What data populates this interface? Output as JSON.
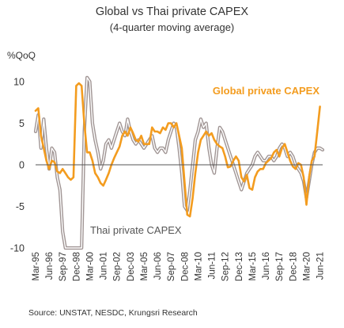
{
  "header": {
    "title": "Global vs Thai private CAPEX",
    "subtitle": "(4-quarter moving average)",
    "y_unit": "%QoQ"
  },
  "footer": {
    "source": "Source:  UNSTAT, NESDC, Krungsri Research"
  },
  "colors": {
    "global": "#f39c1f",
    "thai_outer": "#a09594",
    "thai_inner": "#ffffff",
    "zero_line": "#555555"
  },
  "chart_data": {
    "type": "line",
    "title": "Global vs Thai private CAPEX",
    "subtitle": "(4-quarter moving average)",
    "ylabel": "%QoQ",
    "ylim": [
      -10,
      10
    ],
    "yticks": [
      10,
      5,
      0,
      -5,
      -10
    ],
    "xlim": [
      1995.125,
      2021.625
    ],
    "x_tick_labels": [
      "Mar-95",
      "Jun-96",
      "Sep-97",
      "Dec-98",
      "Mar-00",
      "Jun-01",
      "Sep-02",
      "Dec-03",
      "Mar-05",
      "Jun-06",
      "Sep-07",
      "Dec-08",
      "Mar-10",
      "Jun-11",
      "Sep-12",
      "Dec-13",
      "Mar-15",
      "Jun-16",
      "Sep-17",
      "Dec-18",
      "Mar-20",
      "Jun-21"
    ],
    "x_ticks": [
      1995.125,
      1996.375,
      1997.625,
      1998.875,
      2000.125,
      2001.375,
      2002.625,
      2003.875,
      2005.125,
      2006.375,
      2007.625,
      2008.875,
      2010.125,
      2011.375,
      2012.625,
      2013.875,
      2015.125,
      2016.375,
      2017.625,
      2018.875,
      2020.125,
      2021.375
    ],
    "grid": false,
    "series": [
      {
        "name": "Global private CAPEX",
        "label_position": "top-right",
        "points": [
          [
            1995.125,
            6.5
          ],
          [
            1995.375,
            6.8
          ],
          [
            1995.625,
            3.5
          ],
          [
            1995.875,
            2.0
          ],
          [
            1996.125,
            0.5
          ],
          [
            1996.375,
            -0.5
          ],
          [
            1996.625,
            0.5
          ],
          [
            1996.875,
            0.3
          ],
          [
            1997.125,
            -0.8
          ],
          [
            1997.375,
            -1.0
          ],
          [
            1997.625,
            -0.5
          ],
          [
            1997.875,
            -1.0
          ],
          [
            1998.125,
            -1.5
          ],
          [
            1998.375,
            -1.8
          ],
          [
            1998.625,
            -1.5
          ],
          [
            1998.875,
            9.5
          ],
          [
            1999.125,
            9.8
          ],
          [
            1999.375,
            9.5
          ],
          [
            1999.625,
            5.0
          ],
          [
            1999.875,
            1.5
          ],
          [
            2000.125,
            1.5
          ],
          [
            2000.375,
            0.5
          ],
          [
            2000.625,
            -1.0
          ],
          [
            2000.875,
            -1.5
          ],
          [
            2001.125,
            -2.2
          ],
          [
            2001.375,
            -2.5
          ],
          [
            2001.625,
            -1.8
          ],
          [
            2001.875,
            -1.0
          ],
          [
            2002.125,
            0.0
          ],
          [
            2002.375,
            0.8
          ],
          [
            2002.625,
            1.5
          ],
          [
            2002.875,
            2.2
          ],
          [
            2003.125,
            3.5
          ],
          [
            2003.375,
            4.0
          ],
          [
            2003.625,
            3.5
          ],
          [
            2003.875,
            4.5
          ],
          [
            2004.125,
            3.8
          ],
          [
            2004.375,
            3.0
          ],
          [
            2004.625,
            2.8
          ],
          [
            2004.875,
            3.5
          ],
          [
            2005.125,
            2.5
          ],
          [
            2005.375,
            2.5
          ],
          [
            2005.625,
            2.5
          ],
          [
            2005.875,
            4.5
          ],
          [
            2006.125,
            4.0
          ],
          [
            2006.375,
            4.0
          ],
          [
            2006.625,
            3.8
          ],
          [
            2006.875,
            4.5
          ],
          [
            2007.125,
            4.2
          ],
          [
            2007.375,
            5.0
          ],
          [
            2007.625,
            5.0
          ],
          [
            2007.875,
            4.5
          ],
          [
            2008.125,
            5.0
          ],
          [
            2008.375,
            3.5
          ],
          [
            2008.625,
            2.0
          ],
          [
            2008.875,
            -2.0
          ],
          [
            2009.125,
            -6.0
          ],
          [
            2009.375,
            -6.2
          ],
          [
            2009.625,
            -4.0
          ],
          [
            2009.875,
            -1.0
          ],
          [
            2010.125,
            1.5
          ],
          [
            2010.375,
            3.0
          ],
          [
            2010.625,
            3.5
          ],
          [
            2010.875,
            4.0
          ],
          [
            2011.125,
            3.5
          ],
          [
            2011.375,
            3.8
          ],
          [
            2011.625,
            3.0
          ],
          [
            2011.875,
            2.5
          ],
          [
            2012.125,
            2.2
          ],
          [
            2012.375,
            2.0
          ],
          [
            2012.625,
            1.0
          ],
          [
            2012.875,
            -0.3
          ],
          [
            2013.125,
            -0.2
          ],
          [
            2013.375,
            0.5
          ],
          [
            2013.625,
            1.0
          ],
          [
            2013.875,
            0.5
          ],
          [
            2014.125,
            -1.5
          ],
          [
            2014.375,
            -2.0
          ],
          [
            2014.625,
            -1.2
          ],
          [
            2014.875,
            -2.8
          ],
          [
            2015.125,
            -3.0
          ],
          [
            2015.375,
            -1.5
          ],
          [
            2015.625,
            -0.8
          ],
          [
            2015.875,
            -0.5
          ],
          [
            2016.125,
            -0.5
          ],
          [
            2016.375,
            0.2
          ],
          [
            2016.625,
            0.5
          ],
          [
            2016.875,
            0.8
          ],
          [
            2017.125,
            1.5
          ],
          [
            2017.375,
            1.8
          ],
          [
            2017.625,
            1.0
          ],
          [
            2017.875,
            2.0
          ],
          [
            2018.125,
            2.5
          ],
          [
            2018.375,
            1.5
          ],
          [
            2018.625,
            0.5
          ],
          [
            2018.875,
            -0.2
          ],
          [
            2019.125,
            -0.5
          ],
          [
            2019.375,
            0.2
          ],
          [
            2019.625,
            0.0
          ],
          [
            2019.875,
            -1.5
          ],
          [
            2020.125,
            -4.8
          ],
          [
            2020.375,
            -1.5
          ],
          [
            2020.625,
            0.5
          ],
          [
            2020.875,
            1.0
          ],
          [
            2021.125,
            4.0
          ],
          [
            2021.375,
            7.0
          ]
        ]
      },
      {
        "name": "Thai private CAPEX",
        "label_position": "bottom-left",
        "points": [
          [
            1995.125,
            4.0
          ],
          [
            1995.375,
            6.0
          ],
          [
            1995.625,
            2.0
          ],
          [
            1995.875,
            5.5
          ],
          [
            1996.125,
            2.0
          ],
          [
            1996.375,
            -0.5
          ],
          [
            1996.625,
            2.0
          ],
          [
            1996.875,
            1.5
          ],
          [
            1997.125,
            -1.5
          ],
          [
            1997.375,
            -3.0
          ],
          [
            1997.625,
            -8.0
          ],
          [
            1997.875,
            -10.0
          ],
          [
            1998.125,
            -10.0
          ],
          [
            1998.375,
            -10.0
          ],
          [
            1998.625,
            -10.0
          ],
          [
            1998.875,
            -10.0
          ],
          [
            1999.125,
            -10.0
          ],
          [
            1999.375,
            -10.0
          ],
          [
            1999.625,
            4.0
          ],
          [
            1999.875,
            10.5
          ],
          [
            2000.125,
            10.0
          ],
          [
            2000.375,
            5.0
          ],
          [
            2000.625,
            3.0
          ],
          [
            2000.875,
            1.5
          ],
          [
            2001.125,
            -0.5
          ],
          [
            2001.375,
            0.5
          ],
          [
            2001.625,
            2.5
          ],
          [
            2001.875,
            3.0
          ],
          [
            2002.125,
            2.0
          ],
          [
            2002.375,
            3.0
          ],
          [
            2002.625,
            4.0
          ],
          [
            2002.875,
            5.0
          ],
          [
            2003.125,
            4.0
          ],
          [
            2003.375,
            3.5
          ],
          [
            2003.625,
            5.5
          ],
          [
            2003.875,
            4.0
          ],
          [
            2004.125,
            3.0
          ],
          [
            2004.375,
            2.5
          ],
          [
            2004.625,
            3.0
          ],
          [
            2004.875,
            2.5
          ],
          [
            2005.125,
            2.0
          ],
          [
            2005.375,
            2.5
          ],
          [
            2005.625,
            3.0
          ],
          [
            2005.875,
            3.5
          ],
          [
            2006.125,
            2.0
          ],
          [
            2006.375,
            1.5
          ],
          [
            2006.625,
            2.0
          ],
          [
            2006.875,
            2.0
          ],
          [
            2007.125,
            1.5
          ],
          [
            2007.375,
            3.0
          ],
          [
            2007.625,
            4.0
          ],
          [
            2007.875,
            5.0
          ],
          [
            2008.125,
            4.5
          ],
          [
            2008.375,
            2.0
          ],
          [
            2008.625,
            -1.0
          ],
          [
            2008.875,
            -5.0
          ],
          [
            2009.125,
            -5.5
          ],
          [
            2009.375,
            -3.0
          ],
          [
            2009.625,
            0.0
          ],
          [
            2009.875,
            3.0
          ],
          [
            2010.125,
            4.0
          ],
          [
            2010.375,
            5.5
          ],
          [
            2010.625,
            4.5
          ],
          [
            2010.875,
            5.0
          ],
          [
            2011.125,
            2.0
          ],
          [
            2011.375,
            0.0
          ],
          [
            2011.625,
            -1.0
          ],
          [
            2011.875,
            2.0
          ],
          [
            2012.125,
            4.5
          ],
          [
            2012.375,
            4.0
          ],
          [
            2012.625,
            3.0
          ],
          [
            2012.875,
            2.0
          ],
          [
            2013.125,
            1.0
          ],
          [
            2013.375,
            0.0
          ],
          [
            2013.625,
            -1.0
          ],
          [
            2013.875,
            -2.0
          ],
          [
            2014.125,
            -3.0
          ],
          [
            2014.375,
            -2.0
          ],
          [
            2014.625,
            -1.0
          ],
          [
            2014.875,
            -0.5
          ],
          [
            2015.125,
            0.0
          ],
          [
            2015.375,
            1.0
          ],
          [
            2015.625,
            1.5
          ],
          [
            2015.875,
            1.0
          ],
          [
            2016.125,
            0.5
          ],
          [
            2016.375,
            0.5
          ],
          [
            2016.625,
            1.0
          ],
          [
            2016.875,
            1.0
          ],
          [
            2017.125,
            0.5
          ],
          [
            2017.375,
            1.0
          ],
          [
            2017.625,
            2.0
          ],
          [
            2017.875,
            2.5
          ],
          [
            2018.125,
            2.0
          ],
          [
            2018.375,
            1.0
          ],
          [
            2018.625,
            1.5
          ],
          [
            2018.875,
            1.0
          ],
          [
            2019.125,
            0.0
          ],
          [
            2019.375,
            -0.5
          ],
          [
            2019.625,
            -1.0
          ],
          [
            2019.875,
            -2.0
          ],
          [
            2020.125,
            -4.0
          ],
          [
            2020.375,
            -2.0
          ],
          [
            2020.625,
            0.0
          ],
          [
            2020.875,
            1.5
          ],
          [
            2021.125,
            2.0
          ],
          [
            2021.375,
            2.0
          ],
          [
            2021.625,
            1.8
          ]
        ]
      }
    ]
  }
}
